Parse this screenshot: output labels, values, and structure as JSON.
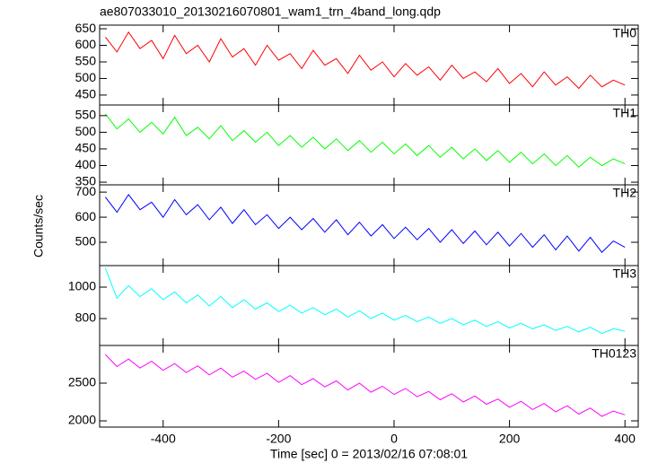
{
  "chart_data": {
    "type": "line",
    "title": "ae807033010_20130216070801_wam1_trn_4band_long.qdp",
    "x_label": "Time [sec] 0 = 2013/02/16 07:08:01",
    "y_label": "Counts/sec",
    "xlim": [
      -510,
      423
    ],
    "xticks": [
      -400,
      -200,
      0,
      200,
      400
    ],
    "x": [
      -500,
      -480,
      -460,
      -440,
      -420,
      -400,
      -380,
      -360,
      -340,
      -320,
      -300,
      -280,
      -260,
      -240,
      -220,
      -200,
      -180,
      -160,
      -140,
      -120,
      -100,
      -80,
      -60,
      -40,
      -20,
      0,
      20,
      40,
      60,
      80,
      100,
      120,
      140,
      160,
      180,
      200,
      220,
      240,
      260,
      280,
      300,
      320,
      340,
      360,
      380,
      400
    ],
    "series": [
      {
        "name": "TH0",
        "color": "#ff0000",
        "ylim": [
          420,
          661
        ],
        "yticks": [
          450,
          500,
          550,
          600,
          650
        ],
        "values": [
          625,
          580,
          640,
          590,
          615,
          560,
          630,
          575,
          600,
          550,
          620,
          565,
          590,
          540,
          600,
          555,
          575,
          530,
          585,
          540,
          560,
          515,
          570,
          525,
          550,
          505,
          545,
          510,
          535,
          495,
          540,
          500,
          520,
          490,
          530,
          485,
          515,
          475,
          520,
          480,
          505,
          470,
          510,
          475,
          495,
          480
        ]
      },
      {
        "name": "TH1",
        "color": "#00ff00",
        "ylim": [
          342,
          582
        ],
        "yticks": [
          350,
          400,
          450,
          500,
          550
        ],
        "values": [
          555,
          510,
          540,
          500,
          530,
          495,
          545,
          490,
          515,
          480,
          520,
          475,
          505,
          470,
          500,
          460,
          490,
          455,
          485,
          450,
          480,
          445,
          475,
          440,
          470,
          435,
          465,
          430,
          460,
          425,
          455,
          420,
          450,
          415,
          445,
          410,
          440,
          405,
          435,
          400,
          430,
          395,
          425,
          400,
          420,
          405
        ]
      },
      {
        "name": "TH2",
        "color": "#0000ff",
        "ylim": [
          407,
          729
        ],
        "yticks": [
          500,
          600,
          700
        ],
        "values": [
          680,
          620,
          690,
          630,
          660,
          600,
          670,
          610,
          650,
          590,
          640,
          575,
          630,
          570,
          610,
          555,
          600,
          550,
          595,
          540,
          590,
          530,
          580,
          525,
          570,
          515,
          560,
          510,
          555,
          500,
          550,
          495,
          545,
          490,
          540,
          485,
          535,
          480,
          530,
          470,
          525,
          465,
          520,
          460,
          505,
          480
        ]
      },
      {
        "name": "TH3",
        "color": "#00ffff",
        "ylim": [
          629,
          1137
        ],
        "yticks": [
          800,
          1000
        ],
        "values": [
          1120,
          930,
          1010,
          940,
          990,
          920,
          970,
          900,
          950,
          880,
          940,
          870,
          920,
          860,
          900,
          845,
          885,
          835,
          870,
          825,
          860,
          810,
          850,
          800,
          835,
          790,
          820,
          780,
          810,
          770,
          800,
          760,
          790,
          750,
          780,
          740,
          770,
          735,
          760,
          725,
          750,
          715,
          745,
          705,
          735,
          720
        ]
      },
      {
        "name": "TH0123",
        "color": "#ff00ff",
        "ylim": [
          1917,
          3000
        ],
        "yticks": [
          2000,
          2500
        ],
        "values": [
          2880,
          2720,
          2820,
          2700,
          2790,
          2670,
          2760,
          2640,
          2730,
          2610,
          2700,
          2580,
          2660,
          2550,
          2630,
          2510,
          2600,
          2480,
          2560,
          2450,
          2530,
          2410,
          2500,
          2380,
          2460,
          2350,
          2430,
          2320,
          2390,
          2280,
          2360,
          2250,
          2330,
          2220,
          2290,
          2180,
          2260,
          2150,
          2230,
          2120,
          2200,
          2090,
          2170,
          2060,
          2130,
          2080
        ]
      }
    ]
  }
}
